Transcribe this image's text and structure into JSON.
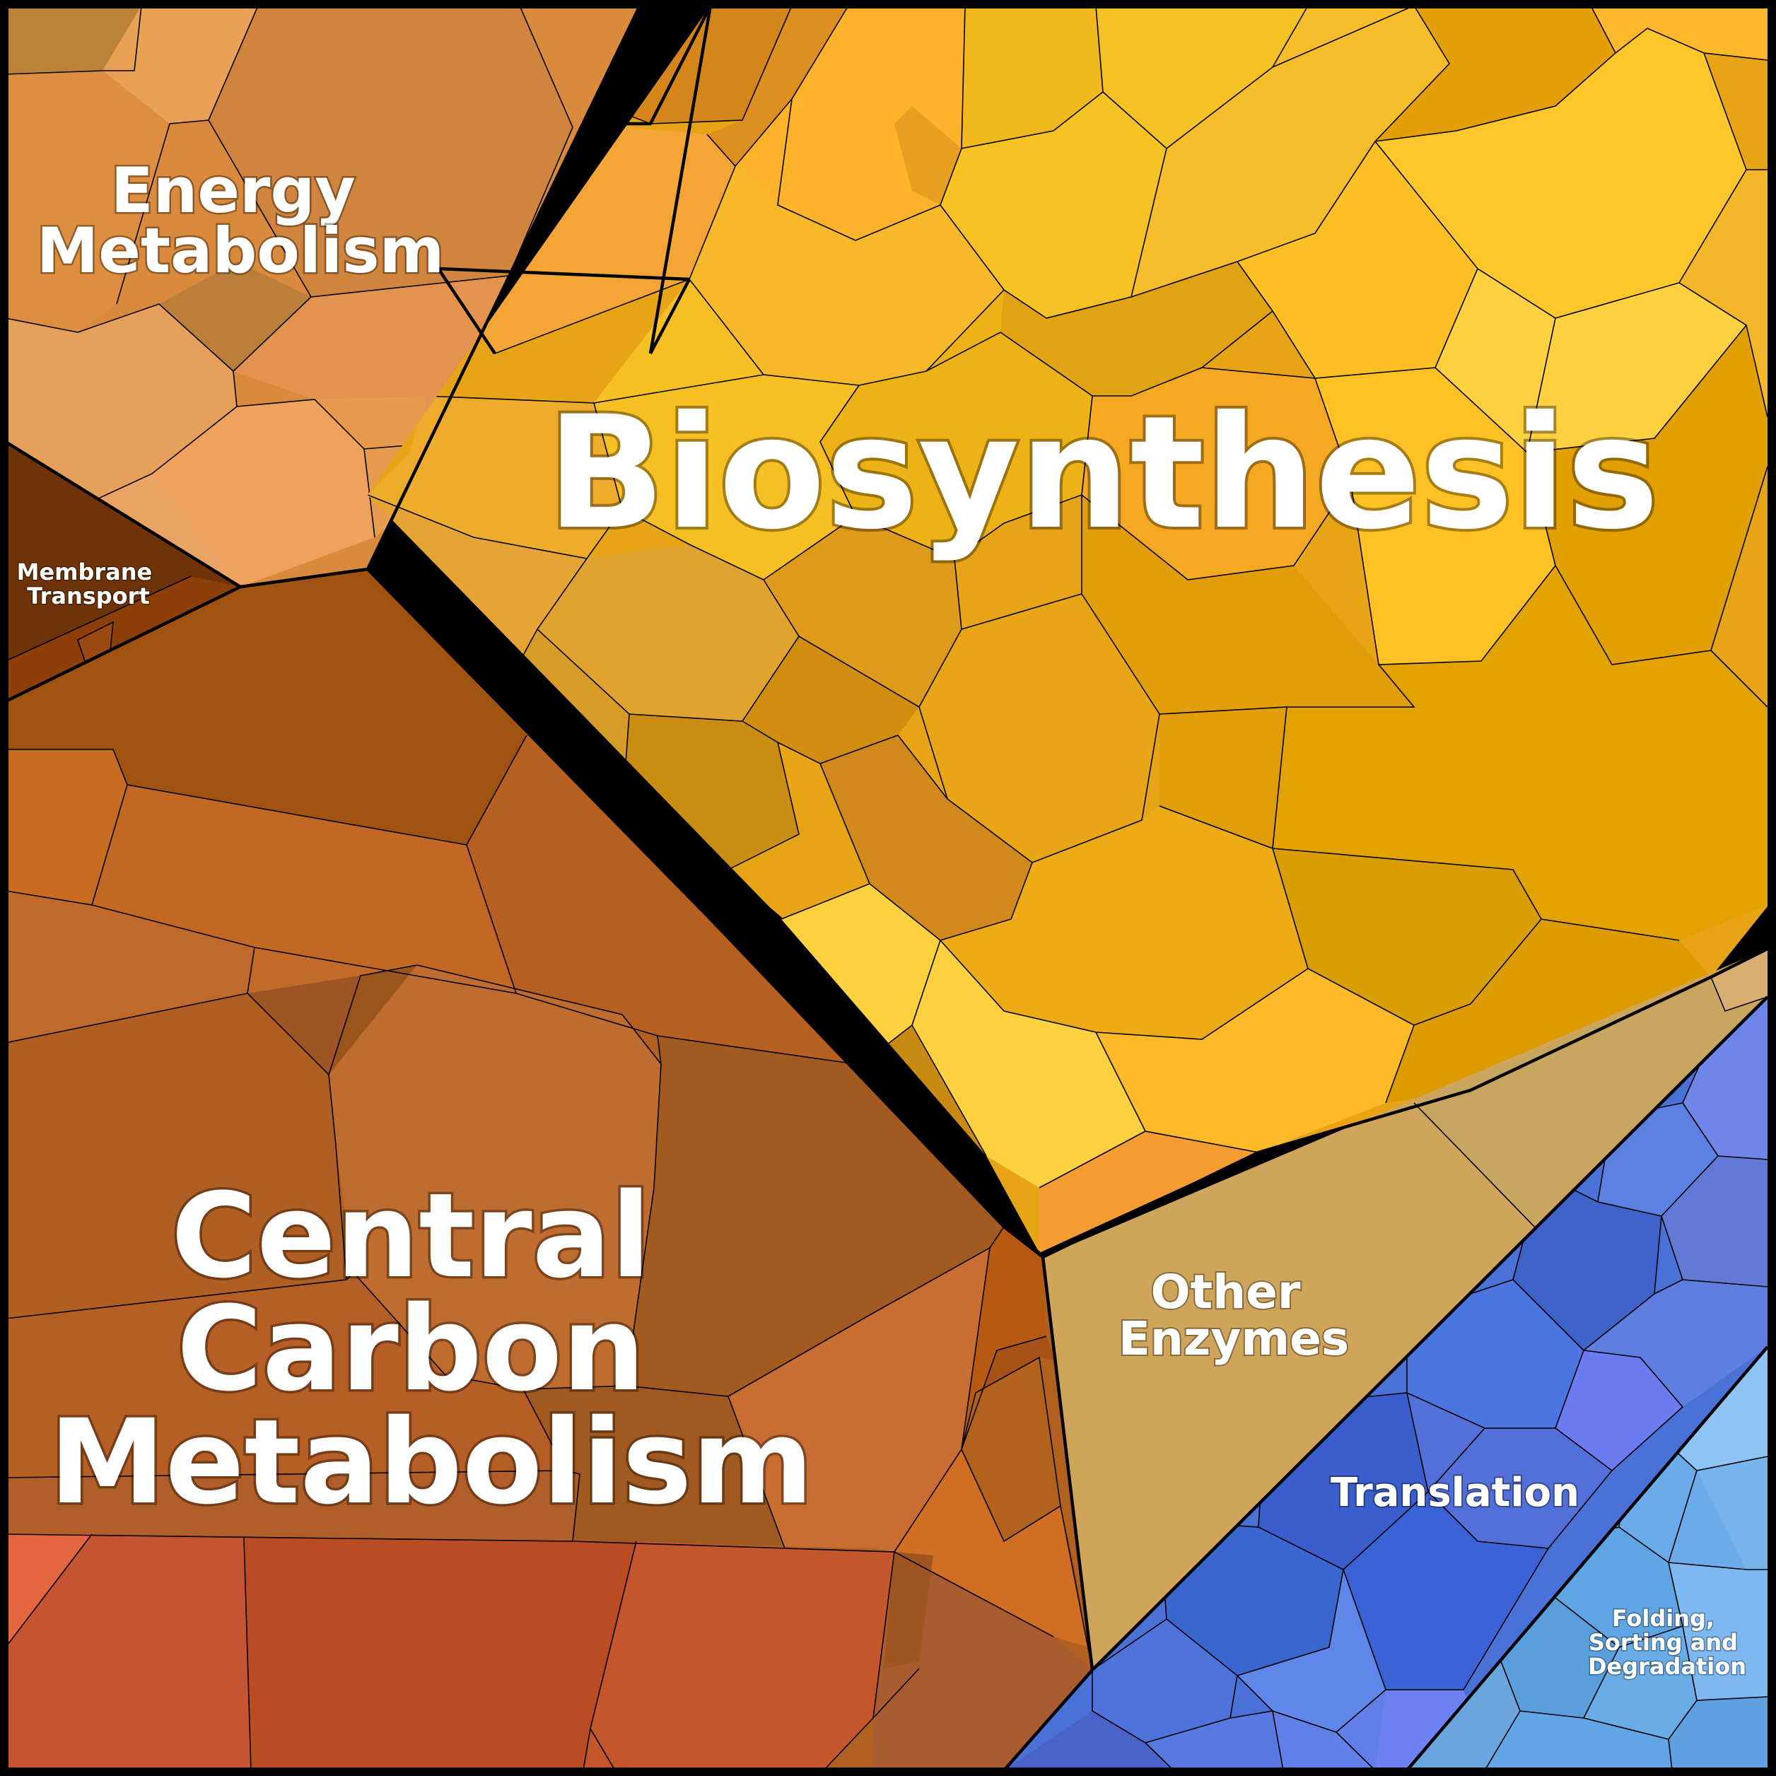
{
  "chart_data": {
    "type": "voronoi_treemap",
    "categories": [
      {
        "name": "Biosynthesis",
        "label_lines": [
          "Biosynthesis"
        ],
        "color": "#E8A417"
      },
      {
        "name": "Central Carbon Metabolism",
        "label_lines": [
          "Central",
          "Carbon",
          "Metabolism"
        ],
        "color": "#B0611F"
      },
      {
        "name": "Energy Metabolism",
        "label_lines": [
          "Energy",
          "Metabolism"
        ],
        "color": "#D98A3C"
      },
      {
        "name": "Membrane Transport",
        "label_lines": [
          "Membrane",
          "Transport"
        ],
        "color": "#6E3306"
      },
      {
        "name": "Other Enzymes",
        "label_lines": [
          "Other",
          "Enzymes"
        ],
        "color": "#CFA55C"
      },
      {
        "name": "Translation",
        "label_lines": [
          "Translation"
        ],
        "color": "#4A72D6"
      },
      {
        "name": "Folding, Sorting and Degradation",
        "label_lines": [
          "Folding,",
          "Sorting and",
          "Degradation"
        ],
        "color": "#6EAEE8"
      }
    ],
    "border_color": "#000000"
  }
}
